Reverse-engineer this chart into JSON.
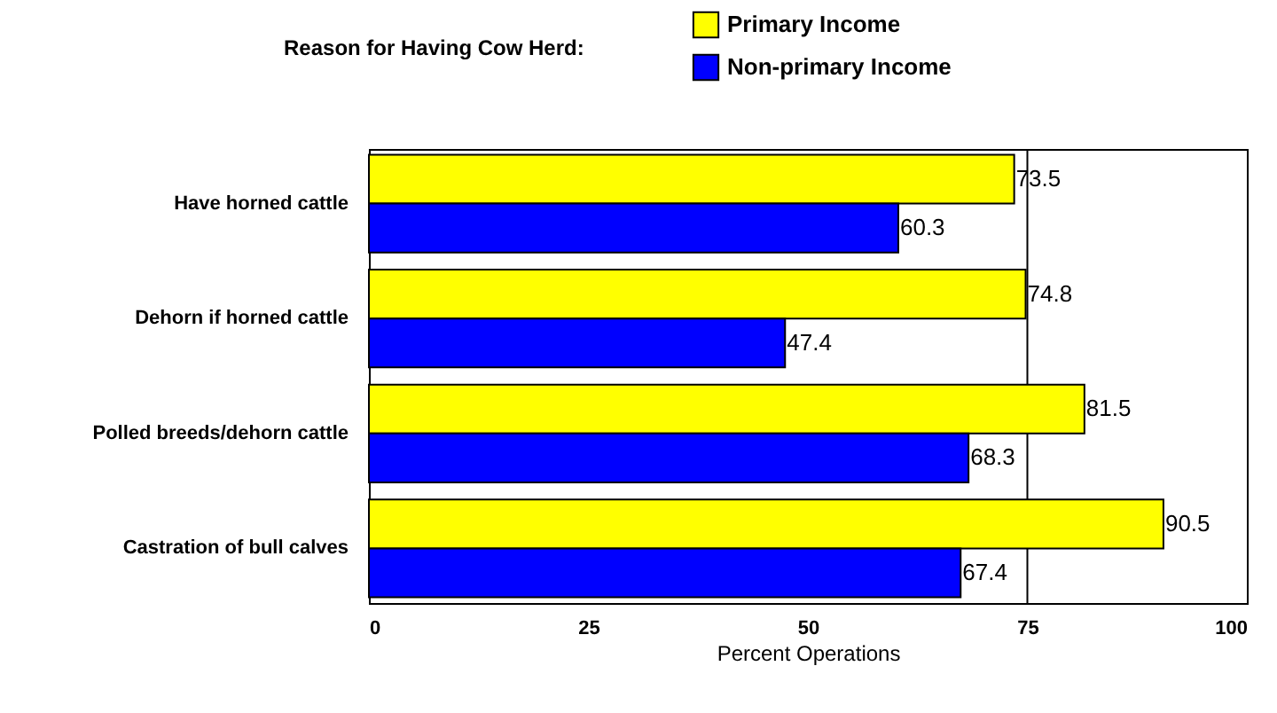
{
  "chart_data": {
    "type": "bar",
    "orientation": "horizontal",
    "legend_title": "Reason for Having Cow Herd:",
    "xlabel": "Percent Operations",
    "categories": [
      "Have horned cattle",
      "Dehorn if horned cattle",
      "Polled breeds/dehorn cattle",
      "Castration of bull calves"
    ],
    "series": [
      {
        "name": "Primary Income",
        "color": "#ffff00",
        "values": [
          73.5,
          74.8,
          81.5,
          90.5
        ]
      },
      {
        "name": "Non-primary Income",
        "color": "#0000ff",
        "values": [
          60.3,
          47.4,
          68.3,
          67.4
        ]
      }
    ],
    "xlim": [
      0,
      100
    ],
    "xticks": [
      0,
      25,
      50,
      75,
      100
    ],
    "data_labels": true,
    "legend": "top",
    "ref_lines": [
      {
        "axis": "x",
        "value": 75
      }
    ]
  }
}
